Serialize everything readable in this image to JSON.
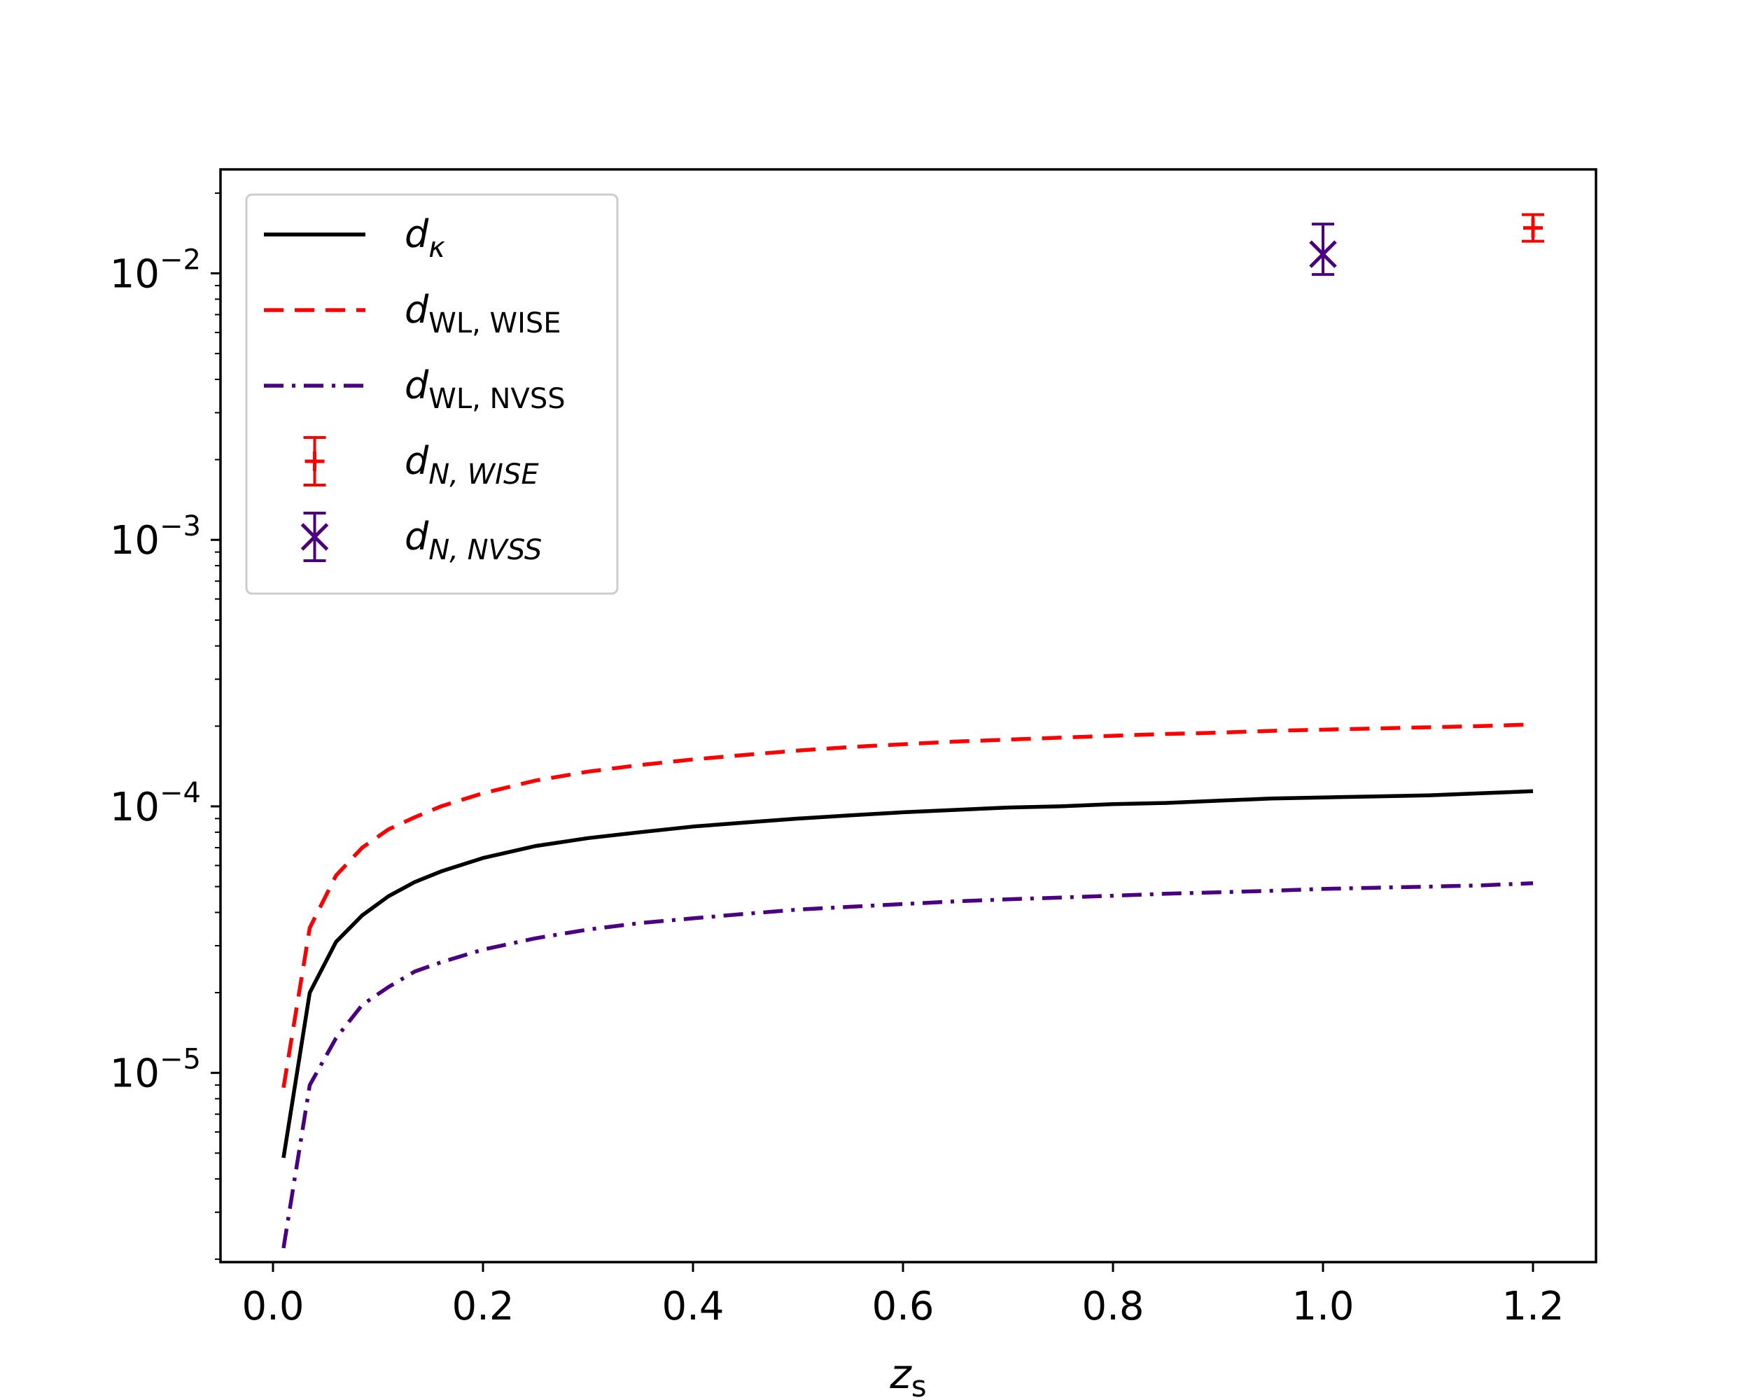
{
  "chart_data": {
    "type": "line",
    "title": "",
    "xlabel": "z_s",
    "xlabel_main": "z",
    "xlabel_sub": "s",
    "ylabel": "",
    "xscale": "linear",
    "yscale": "log",
    "xlim": [
      -0.05,
      1.26
    ],
    "ylim_log10": [
      -5.71,
      -1.61
    ],
    "x_ticks": [
      {
        "value": 0.0,
        "label": "0.0"
      },
      {
        "value": 0.2,
        "label": "0.2"
      },
      {
        "value": 0.4,
        "label": "0.4"
      },
      {
        "value": 0.6,
        "label": "0.6"
      },
      {
        "value": 0.8,
        "label": "0.8"
      },
      {
        "value": 1.0,
        "label": "1.0"
      },
      {
        "value": 1.2,
        "label": "1.2"
      }
    ],
    "y_ticks": [
      {
        "exp": -2,
        "base": "10",
        "power": "−2"
      },
      {
        "exp": -3,
        "base": "10",
        "power": "−3"
      },
      {
        "exp": -4,
        "base": "10",
        "power": "−4"
      },
      {
        "exp": -5,
        "base": "10",
        "power": "−5"
      }
    ],
    "x": [
      0.01,
      0.035,
      0.06,
      0.085,
      0.11,
      0.135,
      0.16,
      0.2,
      0.25,
      0.3,
      0.35,
      0.4,
      0.45,
      0.5,
      0.55,
      0.6,
      0.65,
      0.7,
      0.75,
      0.8,
      0.85,
      0.9,
      0.95,
      1.0,
      1.05,
      1.1,
      1.15,
      1.2
    ],
    "series": [
      {
        "name": "d_kappa",
        "legend_main": "d",
        "legend_sub": "κ",
        "sub_italic": true,
        "color": "#000000",
        "dash": "",
        "values": [
          4.8e-06,
          2e-05,
          3.1e-05,
          3.9e-05,
          4.6e-05,
          5.2e-05,
          5.7e-05,
          6.4e-05,
          7.1e-05,
          7.6e-05,
          8e-05,
          8.4e-05,
          8.7e-05,
          9e-05,
          9.25e-05,
          9.5e-05,
          9.7e-05,
          9.9e-05,
          0.0001,
          0.000102,
          0.000103,
          0.000105,
          0.000107,
          0.000108,
          0.000109,
          0.00011,
          0.000112,
          0.000114
        ]
      },
      {
        "name": "d_WL,WISE",
        "legend_main": "d",
        "legend_sub": "WL, WISE",
        "sub_italic": false,
        "color": "#ff0000",
        "dash": "28,16",
        "values": [
          8.8e-06,
          3.5e-05,
          5.5e-05,
          7e-05,
          8.2e-05,
          9.1e-05,
          0.0001,
          0.000112,
          0.000125,
          0.000135,
          0.000143,
          0.00015,
          0.000156,
          0.000162,
          0.000167,
          0.000171,
          0.000175,
          0.000178,
          0.000181,
          0.000184,
          0.000187,
          0.000189,
          0.000192,
          0.000194,
          0.000196,
          0.000198,
          0.0002,
          0.000203
        ]
      },
      {
        "name": "d_WL,NVSS",
        "legend_main": "d",
        "legend_sub": "WL, NVSS",
        "sub_italic": false,
        "color": "#4b0082",
        "dash": "28,12,5,12",
        "values": [
          2.2e-06,
          9e-06,
          1.35e-05,
          1.8e-05,
          2.1e-05,
          2.4e-05,
          2.6e-05,
          2.9e-05,
          3.2e-05,
          3.45e-05,
          3.65e-05,
          3.8e-05,
          3.95e-05,
          4.1e-05,
          4.2e-05,
          4.3e-05,
          4.4e-05,
          4.48e-05,
          4.55e-05,
          4.62e-05,
          4.7e-05,
          4.76e-05,
          4.82e-05,
          4.9e-05,
          4.95e-05,
          5e-05,
          5.05e-05,
          5.15e-05
        ]
      }
    ],
    "points": [
      {
        "name": "d_N,WISE",
        "legend_main": "d",
        "legend_sub": "N, WISE",
        "sub_italic": true,
        "color": "#ff0000",
        "marker": "plus",
        "x": 1.2,
        "y": 0.0148,
        "y_err_low": 0.0016,
        "y_err_high": 0.0018
      },
      {
        "name": "d_N,NVSS",
        "legend_main": "d",
        "legend_sub": "N, NVSS",
        "sub_italic": true,
        "color": "#4b0082",
        "marker": "x",
        "x": 1.0,
        "y": 0.0118,
        "y_err_low": 0.0019,
        "y_err_high": 0.0035
      }
    ],
    "legend_position": "upper-left",
    "grid": false
  }
}
